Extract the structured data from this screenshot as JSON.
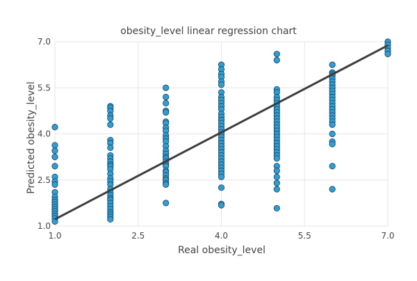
{
  "chart_data": {
    "type": "scatter",
    "title": "obesity_level linear regression chart",
    "xlabel": "Real obesity_level",
    "ylabel": "Predicted obesity_level",
    "xlim": [
      1.0,
      7.0
    ],
    "ylim": [
      1.0,
      7.0
    ],
    "xticks": [
      "1.0",
      "2.5",
      "4.0",
      "5.5",
      "7.0"
    ],
    "yticks": [
      "1.0",
      "2.5",
      "4.0",
      "5.5",
      "7.0"
    ],
    "grid": true,
    "colors": {
      "points": "#2e9fd6",
      "fit_line": "#3d3d3d"
    },
    "series": [
      {
        "points": [
          [
            1,
            4.22
          ],
          [
            1,
            3.63
          ],
          [
            1,
            3.45
          ],
          [
            1,
            3.25
          ],
          [
            1,
            2.95
          ],
          [
            1,
            2.6
          ],
          [
            1,
            2.45
          ],
          [
            1,
            2.35
          ],
          [
            1,
            2.1
          ],
          [
            1,
            1.95
          ],
          [
            1,
            1.85
          ],
          [
            1,
            1.78
          ],
          [
            1,
            1.7
          ],
          [
            1,
            1.62
          ],
          [
            1,
            1.55
          ],
          [
            1,
            1.48
          ],
          [
            1,
            1.4
          ],
          [
            1,
            1.33
          ],
          [
            1,
            1.25
          ],
          [
            1,
            1.15
          ],
          [
            2,
            4.9
          ],
          [
            2,
            4.85
          ],
          [
            2,
            4.75
          ],
          [
            2,
            4.6
          ],
          [
            2,
            4.5
          ],
          [
            2,
            4.3
          ],
          [
            2,
            3.8
          ],
          [
            2,
            3.7
          ],
          [
            2,
            3.55
          ],
          [
            2,
            3.3
          ],
          [
            2,
            3.2
          ],
          [
            2,
            3.1
          ],
          [
            2,
            3.0
          ],
          [
            2,
            2.95
          ],
          [
            2,
            2.85
          ],
          [
            2,
            2.7
          ],
          [
            2,
            2.55
          ],
          [
            2,
            2.45
          ],
          [
            2,
            2.35
          ],
          [
            2,
            2.2
          ],
          [
            2,
            2.1
          ],
          [
            2,
            2.0
          ],
          [
            2,
            1.9
          ],
          [
            2,
            1.85
          ],
          [
            2,
            1.75
          ],
          [
            2,
            1.65
          ],
          [
            2,
            1.55
          ],
          [
            2,
            1.45
          ],
          [
            2,
            1.38
          ],
          [
            2,
            1.3
          ],
          [
            2,
            1.22
          ],
          [
            3,
            5.5
          ],
          [
            3,
            5.2
          ],
          [
            3,
            5.0
          ],
          [
            3,
            4.75
          ],
          [
            3,
            4.7
          ],
          [
            3,
            4.4
          ],
          [
            3,
            4.35
          ],
          [
            3,
            4.2
          ],
          [
            3,
            4.1
          ],
          [
            3,
            3.95
          ],
          [
            3,
            3.85
          ],
          [
            3,
            3.75
          ],
          [
            3,
            3.6
          ],
          [
            3,
            3.45
          ],
          [
            3,
            3.35
          ],
          [
            3,
            3.25
          ],
          [
            3,
            3.2
          ],
          [
            3,
            3.1
          ],
          [
            3,
            3.0
          ],
          [
            3,
            2.95
          ],
          [
            3,
            2.8
          ],
          [
            3,
            2.75
          ],
          [
            3,
            2.65
          ],
          [
            3,
            2.55
          ],
          [
            3,
            2.5
          ],
          [
            3,
            2.4
          ],
          [
            3,
            2.35
          ],
          [
            3,
            1.75
          ],
          [
            4,
            6.25
          ],
          [
            4,
            6.1
          ],
          [
            4,
            5.95
          ],
          [
            4,
            5.85
          ],
          [
            4,
            5.7
          ],
          [
            4,
            5.6
          ],
          [
            4,
            5.35
          ],
          [
            4,
            5.2
          ],
          [
            4,
            5.1
          ],
          [
            4,
            5.0
          ],
          [
            4,
            4.9
          ],
          [
            4,
            4.8
          ],
          [
            4,
            4.65
          ],
          [
            4,
            4.55
          ],
          [
            4,
            4.45
          ],
          [
            4,
            4.35
          ],
          [
            4,
            4.25
          ],
          [
            4,
            4.15
          ],
          [
            4,
            4.05
          ],
          [
            4,
            3.98
          ],
          [
            4,
            3.9
          ],
          [
            4,
            3.8
          ],
          [
            4,
            3.7
          ],
          [
            4,
            3.6
          ],
          [
            4,
            3.5
          ],
          [
            4,
            3.4
          ],
          [
            4,
            3.3
          ],
          [
            4,
            3.2
          ],
          [
            4,
            3.1
          ],
          [
            4,
            3.0
          ],
          [
            4,
            2.9
          ],
          [
            4,
            2.8
          ],
          [
            4,
            2.7
          ],
          [
            4,
            2.6
          ],
          [
            4,
            2.25
          ],
          [
            4,
            1.72
          ],
          [
            4,
            1.68
          ],
          [
            5,
            6.6
          ],
          [
            5,
            6.4
          ],
          [
            5,
            5.45
          ],
          [
            5,
            5.35
          ],
          [
            5,
            5.2
          ],
          [
            5,
            5.1
          ],
          [
            5,
            5.0
          ],
          [
            5,
            4.9
          ],
          [
            5,
            4.8
          ],
          [
            5,
            4.7
          ],
          [
            5,
            4.6
          ],
          [
            5,
            4.5
          ],
          [
            5,
            4.4
          ],
          [
            5,
            4.3
          ],
          [
            5,
            4.2
          ],
          [
            5,
            4.1
          ],
          [
            5,
            4.0
          ],
          [
            5,
            3.9
          ],
          [
            5,
            3.8
          ],
          [
            5,
            3.7
          ],
          [
            5,
            3.6
          ],
          [
            5,
            3.5
          ],
          [
            5,
            3.4
          ],
          [
            5,
            3.3
          ],
          [
            5,
            3.2
          ],
          [
            5,
            2.95
          ],
          [
            5,
            2.8
          ],
          [
            5,
            2.6
          ],
          [
            5,
            2.4
          ],
          [
            5,
            2.2
          ],
          [
            5,
            1.58
          ],
          [
            6,
            6.25
          ],
          [
            6,
            6.0
          ],
          [
            6,
            5.95
          ],
          [
            6,
            5.9
          ],
          [
            6,
            5.8
          ],
          [
            6,
            5.7
          ],
          [
            6,
            5.6
          ],
          [
            6,
            5.5
          ],
          [
            6,
            5.4
          ],
          [
            6,
            5.3
          ],
          [
            6,
            5.2
          ],
          [
            6,
            5.1
          ],
          [
            6,
            5.0
          ],
          [
            6,
            4.9
          ],
          [
            6,
            4.8
          ],
          [
            6,
            4.7
          ],
          [
            6,
            4.6
          ],
          [
            6,
            4.5
          ],
          [
            6,
            4.4
          ],
          [
            6,
            4.3
          ],
          [
            6,
            4.0
          ],
          [
            6,
            3.75
          ],
          [
            6,
            3.67
          ],
          [
            6,
            2.95
          ],
          [
            6,
            2.2
          ],
          [
            7,
            7.0
          ],
          [
            7,
            6.9
          ],
          [
            7,
            6.8
          ],
          [
            7,
            6.7
          ],
          [
            7,
            6.6
          ]
        ]
      }
    ],
    "fit_line": {
      "start": [
        1.0,
        1.22
      ],
      "end": [
        7.0,
        6.88
      ]
    }
  }
}
